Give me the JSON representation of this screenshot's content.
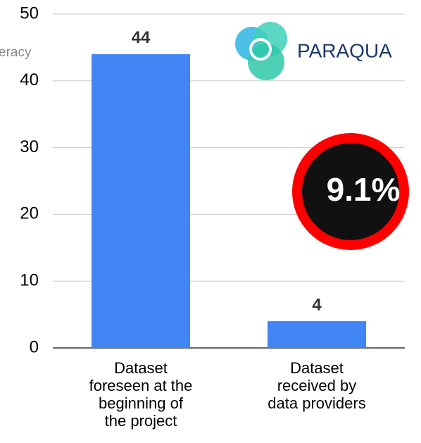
{
  "chart_data": {
    "type": "bar",
    "categories": [
      "Dataset\nforeseen at the\nbeginning of\nthe project",
      "Dataset\nreceived by\ndata providers"
    ],
    "values": [
      44,
      4
    ],
    "color": "#4285f4",
    "ylim": [
      0,
      50
    ],
    "yticks": [
      0,
      10,
      20,
      30,
      40,
      50
    ],
    "grid": true,
    "annotation": "9.1%",
    "logo_text": "PARAQUA",
    "cropped_text": "eracy"
  }
}
